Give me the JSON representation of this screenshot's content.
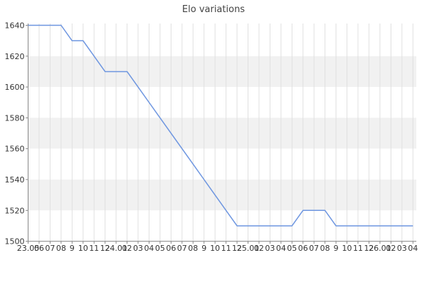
{
  "chart_data": {
    "type": "line",
    "title": "Elo variations",
    "xlabel": "",
    "ylabel": "",
    "x_tick_labels": [
      "23.05",
      "06",
      "07",
      "08",
      "9",
      "10",
      "11",
      "12",
      "24.01",
      "02",
      "03",
      "04",
      "05",
      "06",
      "07",
      "08",
      "9",
      "10",
      "11",
      "12",
      "25.01",
      "02",
      "03",
      "04",
      "05",
      "06",
      "07",
      "08",
      "9",
      "10",
      "11",
      "12",
      "26.01",
      "02",
      "03",
      "04"
    ],
    "series": [
      {
        "name": "Elo",
        "values": [
          1640,
          1640,
          1640,
          1640,
          1630,
          1630,
          1620,
          1610,
          1610,
          1610,
          1600,
          1590,
          1580,
          1570,
          1560,
          1550,
          1540,
          1530,
          1520,
          1510,
          1510,
          1510,
          1510,
          1510,
          1510,
          1520,
          1520,
          1520,
          1510,
          1510,
          1510,
          1510,
          1510,
          1510,
          1510,
          1510
        ]
      }
    ],
    "y_ticks": [
      1640,
      1620,
      1600,
      1580,
      1560,
      1540,
      1520,
      1500
    ],
    "y_tick_labels": [
      "1640",
      "1620",
      "1600",
      "1580",
      "1560",
      "1540",
      "1520",
      "1500"
    ],
    "ylim": [
      1500,
      1642
    ],
    "grid": true,
    "legend": "none",
    "banded_background": true,
    "colors": {
      "line": "#6e96e0",
      "band_gray": "#f1f1f1",
      "band_white": "#ffffff",
      "gridline": "#e0e0e0",
      "axis": "#888888",
      "tick_label": "#333333",
      "title": "#444444",
      "background": "#ffffff"
    }
  }
}
